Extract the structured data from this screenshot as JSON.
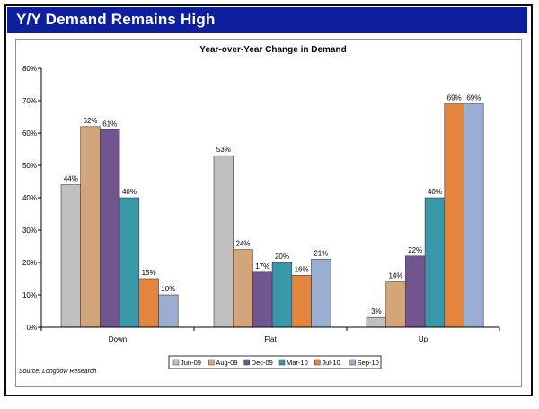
{
  "header": {
    "title": "Y/Y Demand Remains High"
  },
  "footer": {
    "source": "Source: Longbow Research"
  },
  "colors": {
    "banner": "#0d1f9c",
    "series": [
      "#c0c0c0",
      "#d2a57a",
      "#70558f",
      "#3a97a8",
      "#e5853e",
      "#9aaed4"
    ]
  },
  "chart_data": {
    "type": "bar",
    "title": "Year-over-Year Change in Demand",
    "xlabel": "",
    "ylabel": "",
    "categories": [
      "Down",
      "Flat",
      "Up"
    ],
    "ylim": [
      0,
      80
    ],
    "yticks": [
      0,
      10,
      20,
      30,
      40,
      50,
      60,
      70,
      80
    ],
    "y_unit": "%",
    "legend_position": "bottom",
    "grid": false,
    "series": [
      {
        "name": "Jun-09",
        "values": [
          44,
          53,
          3
        ],
        "labels": [
          "44%",
          "53%",
          "3%"
        ]
      },
      {
        "name": "Aug-09",
        "values": [
          62,
          24,
          14
        ],
        "labels": [
          "62%",
          "24%",
          "14%"
        ]
      },
      {
        "name": "Dec-09",
        "values": [
          61,
          17,
          22
        ],
        "labels": [
          "61%",
          "17%",
          "22%"
        ]
      },
      {
        "name": "Mar-10",
        "values": [
          40,
          20,
          40
        ],
        "labels": [
          "40%",
          "20%",
          "40%"
        ]
      },
      {
        "name": "Jul-10",
        "values": [
          15,
          16,
          69
        ],
        "labels": [
          "15%",
          "16%",
          "69%"
        ]
      },
      {
        "name": "Sep-10",
        "values": [
          10,
          21,
          69
        ],
        "labels": [
          "10%",
          "21%",
          "69%"
        ]
      }
    ]
  }
}
